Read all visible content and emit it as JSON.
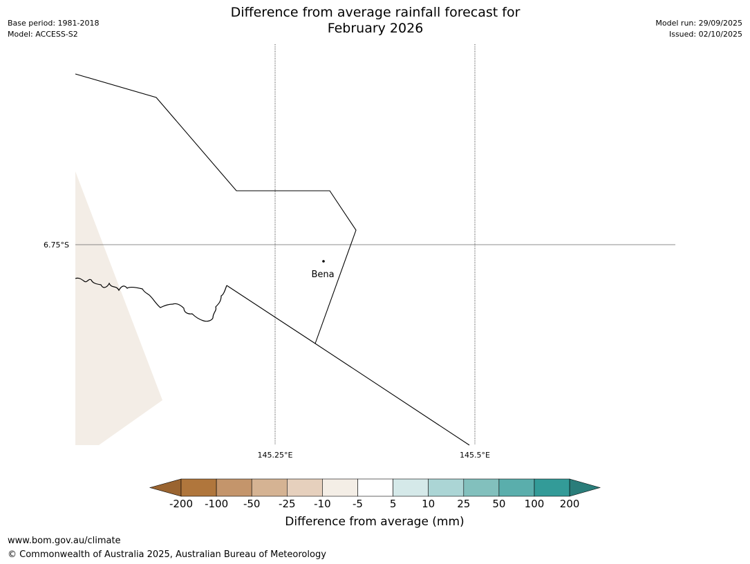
{
  "title": {
    "line1": "Difference from average rainfall forecast for",
    "line2": "February 2026"
  },
  "meta_left": {
    "base_period": "Base period: 1981-2018",
    "model": "Model: ACCESS-S2"
  },
  "meta_right": {
    "model_run": "Model run: 29/09/2025",
    "issued": "Issued: 02/10/2025"
  },
  "map": {
    "lat_label": "6.75°S",
    "lon_labels": [
      "145.25°E",
      "145.5°E"
    ],
    "place": "Bena",
    "land_fill": "#f3ede6",
    "boundary_color": "#000000"
  },
  "colorbar": {
    "tick_labels": [
      "-200",
      "-100",
      "-50",
      "-25",
      "-10",
      "-5",
      "5",
      "10",
      "25",
      "50",
      "100",
      "200"
    ],
    "colors": [
      "#9a6430",
      "#b0763c",
      "#c4956b",
      "#d5b393",
      "#e6d0bd",
      "#f4eee6",
      "#ffffff",
      "#d5e9e9",
      "#abd5d5",
      "#82c0bd",
      "#5aaeac",
      "#339b98",
      "#2a7d7a"
    ],
    "label": "Difference from average (mm)"
  },
  "footer": {
    "url": "www.bom.gov.au/climate",
    "copyright": "© Commonwealth of Australia 2025, Australian Bureau of Meteorology"
  }
}
